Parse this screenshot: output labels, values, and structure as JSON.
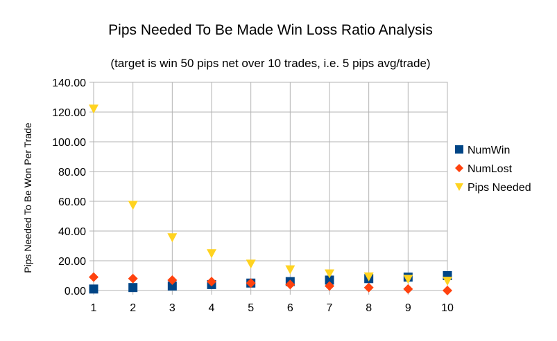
{
  "chart_data": {
    "type": "scatter",
    "title": "Pips Needed To Be Made Win Loss Ratio Analysis",
    "subtitle": "(target is win 50 pips net over 10 trades, i.e. 5 pips avg/trade)",
    "xlabel": "",
    "ylabel": "Pips Needed To Be Won Per Trade",
    "xlim": [
      1,
      10
    ],
    "ylim": [
      0,
      140
    ],
    "x_ticks": [
      "1",
      "2",
      "3",
      "4",
      "5",
      "6",
      "7",
      "8",
      "9",
      "10"
    ],
    "y_ticks": [
      "0.00",
      "20.00",
      "40.00",
      "60.00",
      "80.00",
      "100.00",
      "120.00",
      "140.00"
    ],
    "grid": true,
    "legend_position": "right",
    "x": [
      1,
      2,
      3,
      4,
      5,
      6,
      7,
      8,
      9,
      10
    ],
    "series": [
      {
        "name": "NumWin",
        "marker": "square",
        "color": "#004586",
        "values": [
          1,
          2,
          3,
          4,
          5,
          6,
          7,
          8,
          9,
          10
        ]
      },
      {
        "name": "NumLost",
        "marker": "diamond",
        "color": "#ff420e",
        "values": [
          9,
          8,
          7,
          6,
          5,
          4,
          3,
          2,
          1,
          0
        ]
      },
      {
        "name": "Pips Needed",
        "marker": "triangle-down",
        "color": "#ffd320",
        "values": [
          122.22,
          57.5,
          35.71,
          25,
          18,
          14.17,
          11.43,
          9.38,
          7.78,
          6.5
        ]
      }
    ]
  }
}
